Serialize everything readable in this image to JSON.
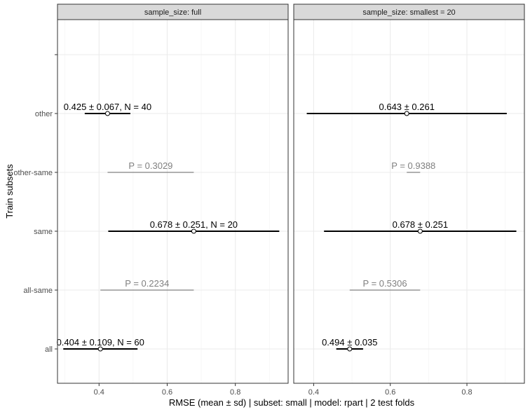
{
  "chart_data": {
    "type": "interval",
    "xlabel": "RMSE (mean ± sd) | subset: small | model: rpart | 2 test folds",
    "ylabel": "Train subsets",
    "categories": [
      "all",
      "all-same",
      "same",
      "other-same",
      "other",
      ""
    ],
    "colors": {
      "interval": "#000000",
      "pvalue": "#808080",
      "strip_fill": "#d9d9d9",
      "grid": "#ebebeb"
    },
    "panels": [
      {
        "strip": "sample_size: full",
        "xlim": [
          0.278,
          0.955
        ],
        "xticks": [
          0.4,
          0.6,
          0.8
        ],
        "tick_labels": [
          "0.4",
          "0.6",
          "0.8"
        ],
        "intervals": [
          {
            "category": "other",
            "mean": 0.425,
            "lo": 0.358,
            "hi": 0.492,
            "label": "0.425 ± 0.067, N = 40"
          },
          {
            "category": "same",
            "mean": 0.678,
            "lo": 0.427,
            "hi": 0.929,
            "label": "0.678 ± 0.251, N = 20"
          },
          {
            "category": "all",
            "mean": 0.404,
            "lo": 0.295,
            "hi": 0.513,
            "label": "0.404 ± 0.109, N = 60"
          }
        ],
        "pvalues": [
          {
            "category": "other-same",
            "from": 0.425,
            "to": 0.678,
            "label": "P = 0.3029"
          },
          {
            "category": "all-same",
            "from": 0.404,
            "to": 0.678,
            "label": "P = 0.2234"
          }
        ]
      },
      {
        "strip": "sample_size: smallest = 20",
        "xlim": [
          0.348,
          0.95
        ],
        "xticks": [
          0.4,
          0.6,
          0.8
        ],
        "tick_labels": [
          "0.4",
          "0.6",
          "0.8"
        ],
        "intervals": [
          {
            "category": "other",
            "mean": 0.643,
            "lo": 0.382,
            "hi": 0.904,
            "label": "0.643 ± 0.261"
          },
          {
            "category": "same",
            "mean": 0.678,
            "lo": 0.427,
            "hi": 0.929,
            "label": "0.678 ± 0.251"
          },
          {
            "category": "all",
            "mean": 0.494,
            "lo": 0.459,
            "hi": 0.529,
            "label": "0.494 ± 0.035"
          }
        ],
        "pvalues": [
          {
            "category": "other-same",
            "from": 0.643,
            "to": 0.678,
            "label": "P = 0.9388"
          },
          {
            "category": "all-same",
            "from": 0.494,
            "to": 0.678,
            "label": "P = 0.5306"
          }
        ]
      }
    ]
  }
}
